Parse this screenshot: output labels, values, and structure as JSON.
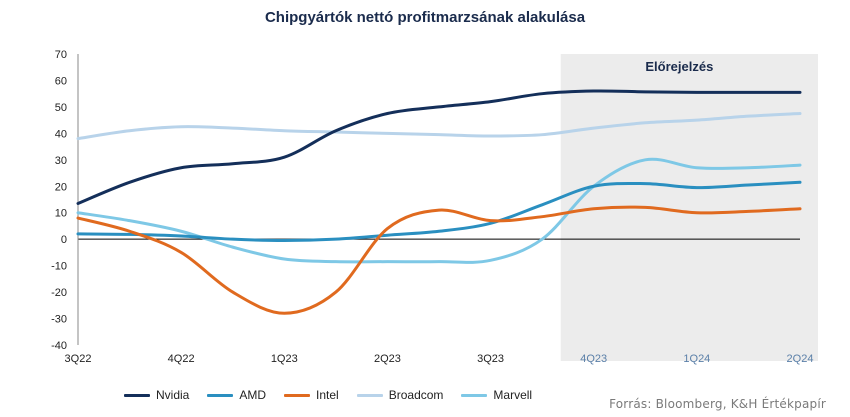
{
  "title": "Chipgyártók nettó profitmarzsának alakulása",
  "forecast_label": "Előrejelzés",
  "source": "Forrás: Bloomberg, K&H Értékpapír",
  "chart_data": {
    "type": "line",
    "title": "Chipgyártók nettó profitmarzsának alakulása",
    "xlabel": "",
    "ylabel": "",
    "ylim": [
      -40,
      70
    ],
    "yticks": [
      -40,
      -30,
      -20,
      -10,
      0,
      10,
      20,
      30,
      40,
      50,
      60,
      70
    ],
    "x": [
      0,
      0.5,
      1,
      1.5,
      2,
      2.5,
      3,
      3.5,
      4,
      4.5,
      5,
      5.5,
      6,
      6.5,
      7
    ],
    "xtick_labels": [
      "3Q22",
      "4Q22",
      "1Q23",
      "2Q23",
      "3Q23",
      "4Q23",
      "1Q24",
      "2Q24"
    ],
    "xlim": [
      0,
      7
    ],
    "forecast_start_x": 4.68,
    "grid": false,
    "legend_position": "bottom",
    "series": [
      {
        "name": "Nvidia",
        "color": "#142f5a",
        "values": [
          13.5,
          21.5,
          27,
          28.5,
          31,
          41,
          47.5,
          50,
          52,
          55,
          56,
          55.7,
          55.5,
          55.5,
          55.5
        ]
      },
      {
        "name": "AMD",
        "color": "#2a8fc0",
        "values": [
          2,
          1.8,
          1.2,
          0,
          -0.5,
          0,
          1.5,
          3,
          6,
          13,
          20,
          21,
          19.5,
          20.5,
          21.5
        ]
      },
      {
        "name": "Intel",
        "color": "#e06a1f",
        "values": [
          8,
          3,
          -5,
          -20,
          -28,
          -20,
          4,
          11,
          7,
          8.5,
          11.5,
          12,
          10,
          10.5,
          11.5
        ]
      },
      {
        "name": "Broadcom",
        "color": "#b8d3ea",
        "values": [
          38,
          41,
          42.5,
          42,
          41,
          40.5,
          40,
          39.5,
          39,
          39.5,
          42,
          44,
          45,
          46.5,
          47.5
        ]
      },
      {
        "name": "Marvell",
        "color": "#7ec8e6",
        "values": [
          10,
          7,
          3,
          -3,
          -7.5,
          -8.5,
          -8.5,
          -8.5,
          -8,
          0,
          20,
          30,
          27,
          27,
          28
        ]
      }
    ]
  }
}
